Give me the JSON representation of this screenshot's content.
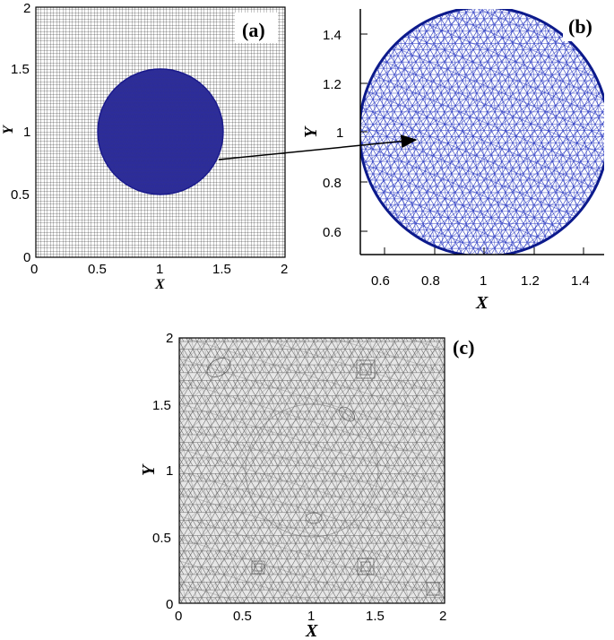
{
  "panels": [
    {
      "id": "a",
      "label": "(a)",
      "xlabel": "X",
      "ylabel": "Y",
      "xticks": [
        "0",
        "0.5",
        "1",
        "1.5",
        "2"
      ],
      "yticks": [
        "0",
        "0.5",
        "1",
        "1.5",
        "2"
      ],
      "mesh": "structured background grid",
      "grid_color": "#000000",
      "circle_center": [
        1,
        1
      ],
      "circle_radius": 0.5,
      "circle_color": "#1a1a8c"
    },
    {
      "id": "b",
      "label": "(b)",
      "xlabel": "X",
      "ylabel": "Y",
      "xticks": [
        "0.6",
        "0.8",
        "1",
        "1.2",
        "1.4"
      ],
      "yticks": [
        "0.6",
        "0.8",
        "1",
        "1.2",
        "1.4"
      ],
      "mesh": "unstructured triangular mesh (zoom of circle)",
      "mesh_color": "#1f2fbf"
    },
    {
      "id": "c",
      "label": "(c)",
      "xlabel": "X",
      "ylabel": "Y",
      "xticks": [
        "0",
        "0.5",
        "1",
        "1.5",
        "2"
      ],
      "yticks": [
        "0",
        "0.5",
        "1",
        "1.5",
        "2"
      ],
      "mesh": "combined unstructured triangular mesh",
      "mesh_color": "#555555",
      "fill_color": "#e6e6e6"
    }
  ]
}
